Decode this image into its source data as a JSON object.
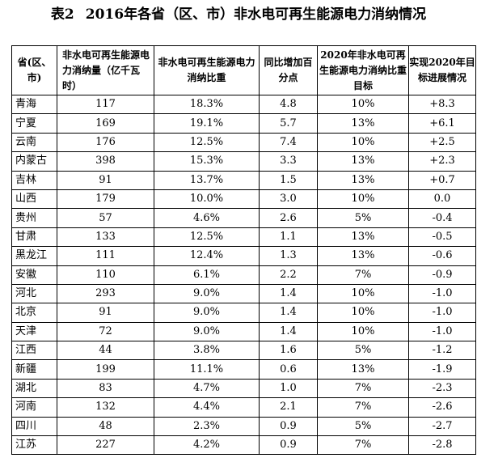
{
  "title": {
    "prefix": "表2",
    "text": "2016年各省（区、市）非水电可再生能源电力消纳情况"
  },
  "table": {
    "headers": [
      "省(区、市)",
      "非水电可再生能源电力消纳量（亿千瓦时）",
      "非水电可再生能源电力消纳比重",
      "同比增加百分点",
      "2020年非水电可再生能源电力消纳比重目标",
      "实现2020年目标进展情况"
    ],
    "rows": [
      [
        "青海",
        "117",
        "18.3%",
        "4.8",
        "10%",
        "+8.3"
      ],
      [
        "宁夏",
        "169",
        "19.1%",
        "5.7",
        "13%",
        "+6.1"
      ],
      [
        "云南",
        "176",
        "12.5%",
        "7.4",
        "10%",
        "+2.5"
      ],
      [
        "内蒙古",
        "398",
        "15.3%",
        "3.3",
        "13%",
        "+2.3"
      ],
      [
        "吉林",
        "91",
        "13.7%",
        "1.5",
        "13%",
        "+0.7"
      ],
      [
        "山西",
        "179",
        "10.0%",
        "3.0",
        "10%",
        "0.0"
      ],
      [
        "贵州",
        "57",
        "4.6%",
        "2.6",
        "5%",
        "-0.4"
      ],
      [
        "甘肃",
        "133",
        "12.5%",
        "1.1",
        "13%",
        "-0.5"
      ],
      [
        "黑龙江",
        "111",
        "12.4%",
        "1.3",
        "13%",
        "-0.6"
      ],
      [
        "安徽",
        "110",
        "6.1%",
        "2.2",
        "7%",
        "-0.9"
      ],
      [
        "河北",
        "293",
        "9.0%",
        "1.4",
        "10%",
        "-1.0"
      ],
      [
        "北京",
        "91",
        "9.0%",
        "1.4",
        "10%",
        "-1.0"
      ],
      [
        "天津",
        "72",
        "9.0%",
        "1.4",
        "10%",
        "-1.0"
      ],
      [
        "江西",
        "44",
        "3.8%",
        "1.6",
        "5%",
        "-1.2"
      ],
      [
        "新疆",
        "199",
        "11.1%",
        "0.6",
        "13%",
        "-1.9"
      ],
      [
        "湖北",
        "83",
        "4.7%",
        "1.0",
        "7%",
        "-2.3"
      ],
      [
        "河南",
        "132",
        "4.4%",
        "2.1",
        "7%",
        "-2.6"
      ],
      [
        "四川",
        "48",
        "2.3%",
        "0.9",
        "5%",
        "-2.7"
      ],
      [
        "江苏",
        "227",
        "4.2%",
        "0.9",
        "7%",
        "-2.8"
      ]
    ]
  }
}
